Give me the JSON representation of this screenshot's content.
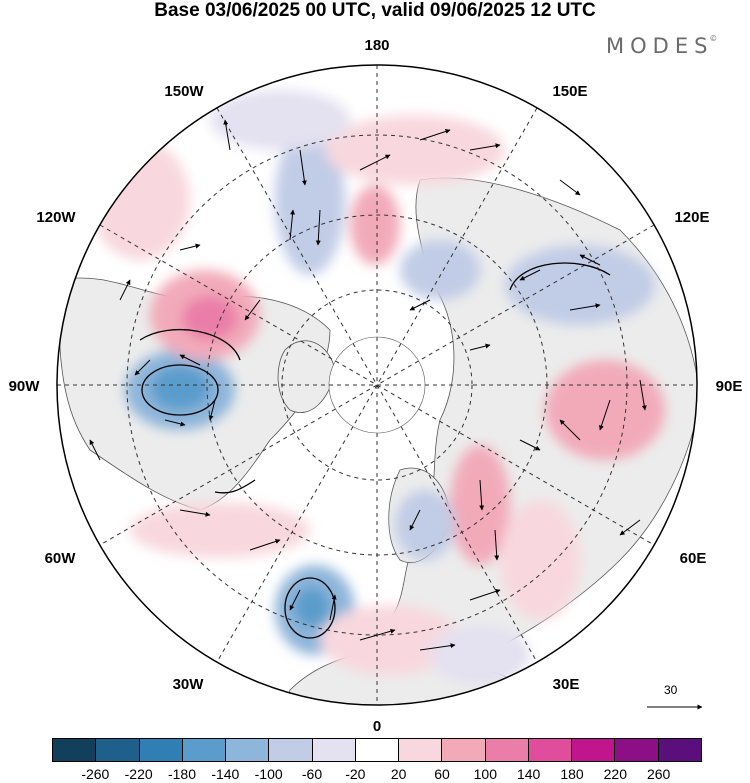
{
  "title": "Base 03/06/2025 00 UTC, valid 09/06/2025 12 UTC",
  "brand": "MODES",
  "brand_mark": "©",
  "map": {
    "projection": "north-polar-stereographic",
    "longitude_labels": {
      "top": "180",
      "top_left": "150W",
      "top_right": "150E",
      "upper_left": "120W",
      "upper_right": "120E",
      "left": "90W",
      "right": "90E",
      "lower_left": "60W",
      "lower_right": "60E",
      "bottom_left": "30W",
      "bottom_right": "30E",
      "bottom": "0"
    },
    "reference_vector": "30",
    "colors": {
      "land": "#ececec",
      "ocean": "#ffffff",
      "coast": "#555555",
      "grid": "#333333"
    },
    "anomalies": [
      {
        "sign": "negative",
        "level": -100
      },
      {
        "sign": "negative",
        "level": -140
      },
      {
        "sign": "positive",
        "level": 100
      },
      {
        "sign": "positive",
        "level": 140
      },
      {
        "sign": "positive",
        "level": 60
      }
    ]
  },
  "legend": {
    "colors": [
      "#123f5c",
      "#1f5f8b",
      "#2f7fb4",
      "#5a9ccc",
      "#8eb5da",
      "#c1cce6",
      "#e4e1f0",
      "#ffffff",
      "#f8d8de",
      "#f2aab9",
      "#ea7ea8",
      "#e04d9c",
      "#c0158d",
      "#8c0f86",
      "#5a0f7c"
    ],
    "ticks": [
      "-260",
      "-220",
      "-180",
      "-140",
      "-100",
      "-60",
      "-20",
      "20",
      "60",
      "100",
      "140",
      "180",
      "220",
      "260"
    ]
  }
}
